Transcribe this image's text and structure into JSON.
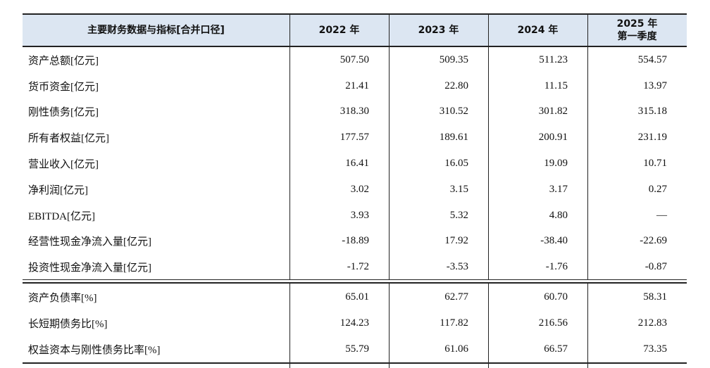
{
  "table": {
    "header": [
      "主要财务数据与指标[合并口径]",
      "2022 年",
      "2023 年",
      "2024 年",
      [
        "2025 年",
        "第一季度"
      ]
    ],
    "sections": [
      {
        "rows": [
          [
            "资产总额[亿元]",
            "507.50",
            "509.35",
            "511.23",
            "554.57"
          ],
          [
            "货币资金[亿元]",
            "21.41",
            "22.80",
            "11.15",
            "13.97"
          ],
          [
            "刚性债务[亿元]",
            "318.30",
            "310.52",
            "301.82",
            "315.18"
          ],
          [
            "所有者权益[亿元]",
            "177.57",
            "189.61",
            "200.91",
            "231.19"
          ],
          [
            "营业收入[亿元]",
            "16.41",
            "16.05",
            "19.09",
            "10.71"
          ],
          [
            "净利润[亿元]",
            "3.02",
            "3.15",
            "3.17",
            "0.27"
          ],
          [
            "EBITDA[亿元]",
            "3.93",
            "5.32",
            "4.80",
            "—"
          ],
          [
            "经营性现金净流入量[亿元]",
            "-18.89",
            "17.92",
            "-38.40",
            "-22.69"
          ],
          [
            "投资性现金净流入量[亿元]",
            "-1.72",
            "-3.53",
            "-1.76",
            "-0.87"
          ]
        ]
      },
      {
        "rows": [
          [
            "资产负债率[%]",
            "65.01",
            "62.77",
            "60.70",
            "58.31"
          ],
          [
            "长短期债务比[%]",
            "124.23",
            "117.82",
            "216.56",
            "212.83"
          ],
          [
            "权益资本与刚性债务比率[%]",
            "55.79",
            "61.06",
            "66.57",
            "73.35"
          ]
        ]
      }
    ]
  }
}
